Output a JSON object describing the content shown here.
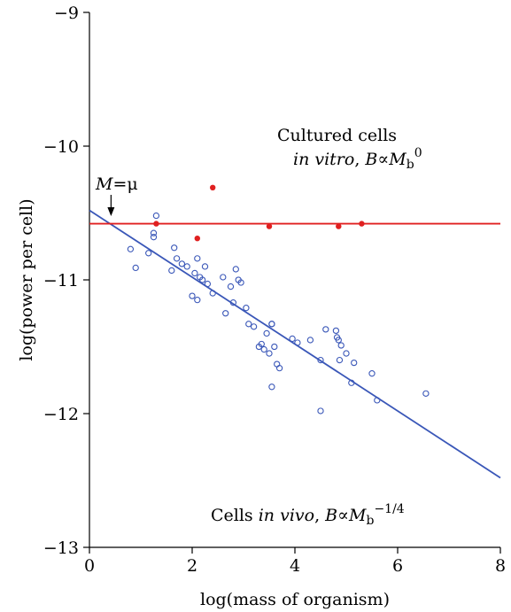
{
  "chart_data": {
    "type": "scatter",
    "xlabel": "log(mass of organism)",
    "ylabel": "log(power per cell)",
    "xlim": [
      0,
      8
    ],
    "ylim": [
      -13,
      -9
    ],
    "xticks": [
      0,
      2,
      4,
      6,
      8
    ],
    "xtick_labels": [
      "0",
      "2",
      "4",
      "6",
      "8"
    ],
    "yticks": [
      -13,
      -12,
      -11,
      -10,
      -9
    ],
    "ytick_labels": [
      "−13",
      "−12",
      "−11",
      "−10",
      "−9"
    ],
    "grid": false,
    "colors": {
      "in_vivo": "#3a57b8",
      "in_vitro": "#e02020"
    },
    "series": [
      {
        "marker": "open-circle",
        "color": "#3a57b8",
        "x": [
          1.3,
          0.8,
          1.25,
          1.25,
          1.15,
          0.9,
          1.65,
          1.7,
          1.6,
          1.8,
          1.9,
          2.0,
          2.05,
          2.1,
          2.15,
          2.2,
          2.25,
          2.3,
          2.1,
          2.4,
          2.6,
          2.65,
          2.75,
          2.8,
          2.85,
          2.9,
          2.95,
          3.05,
          3.1,
          3.2,
          3.3,
          3.35,
          3.4,
          3.45,
          3.5,
          3.55,
          3.6,
          3.65,
          3.7,
          3.55,
          3.95,
          4.05,
          4.3,
          4.5,
          4.6,
          4.8,
          4.82,
          4.85,
          4.87,
          4.9,
          5.0,
          5.1,
          5.15,
          5.5,
          5.6,
          6.55,
          4.5,
          3.55
        ],
        "y": [
          -10.52,
          -10.77,
          -10.65,
          -10.68,
          -10.8,
          -10.91,
          -10.76,
          -10.84,
          -10.93,
          -10.88,
          -10.9,
          -11.12,
          -10.95,
          -10.84,
          -10.98,
          -11.0,
          -10.9,
          -11.03,
          -11.15,
          -11.1,
          -10.98,
          -11.25,
          -11.05,
          -11.17,
          -10.92,
          -11.0,
          -11.02,
          -11.21,
          -11.33,
          -11.35,
          -11.5,
          -11.48,
          -11.52,
          -11.4,
          -11.55,
          -11.33,
          -11.5,
          -11.63,
          -11.66,
          -11.8,
          -11.44,
          -11.47,
          -11.45,
          -11.6,
          -11.37,
          -11.38,
          -11.43,
          -11.45,
          -11.6,
          -11.49,
          -11.55,
          -11.77,
          -11.62,
          -11.7,
          -11.9,
          -11.85,
          -11.98,
          -11.33
        ]
      },
      {
        "marker": "filled-circle",
        "color": "#e02020",
        "x": [
          1.3,
          2.1,
          2.4,
          3.5,
          4.85,
          5.3
        ],
        "y": [
          -10.58,
          -10.69,
          -10.31,
          -10.6,
          -10.6,
          -10.58
        ]
      }
    ],
    "lines": [
      {
        "color": "#3a57b8",
        "x": [
          0,
          8
        ],
        "y": [
          -10.48,
          -12.48
        ]
      },
      {
        "color": "#e02020",
        "x": [
          0,
          8
        ],
        "y": [
          -10.58,
          -10.58
        ]
      }
    ],
    "annotations": {
      "in_vitro_line1": "Cultured cells",
      "in_vitro_line2_a": "in vitro",
      "in_vitro_line2_b": ", ",
      "in_vitro_B": "B",
      "in_vitro_prop": "∝",
      "in_vitro_M": "M",
      "in_vitro_sub": "b",
      "in_vitro_exp": "0",
      "in_vivo_a": "Cells ",
      "in_vivo_b": "in vivo",
      "in_vivo_c": ", ",
      "in_vivo_B": "B",
      "in_vivo_prop": "∝",
      "in_vivo_M": "M",
      "in_vivo_sub": "b",
      "in_vivo_exp": "−1/4",
      "mu_M": "M",
      "mu_eq": "=μ",
      "mu_x": 0.42
    }
  }
}
